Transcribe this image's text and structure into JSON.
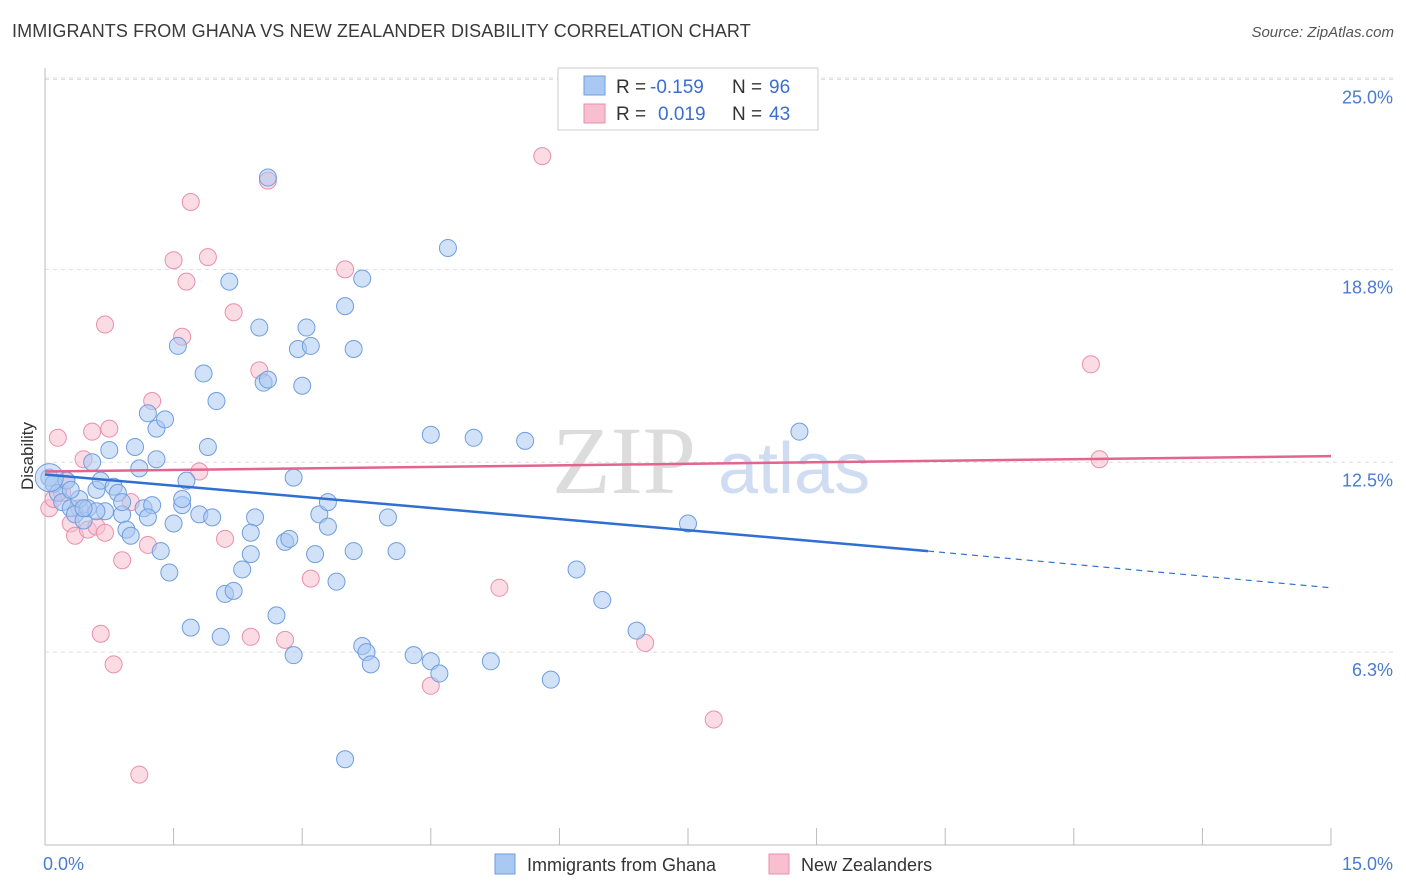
{
  "title": "IMMIGRANTS FROM GHANA VS NEW ZEALANDER DISABILITY CORRELATION CHART",
  "source": "Source: ZipAtlas.com",
  "watermark": {
    "zip": "ZIP",
    "atlas": "atlas"
  },
  "colors": {
    "blue_fill": "#a9c8f2",
    "blue_stroke": "#6f9ee0",
    "blue_line": "#2f6fd1",
    "pink_fill": "#f7bfd0",
    "pink_stroke": "#ea8fab",
    "pink_line": "#e2648f",
    "tick_text": "#4a7bd0",
    "grid": "#dddddd"
  },
  "legend": {
    "rows": [
      {
        "r_label": "R = ",
        "r_value": "-0.159",
        "n_label": "N = ",
        "n_value": "96"
      },
      {
        "r_label": "R = ",
        "r_value": "0.019",
        "n_label": "N = ",
        "n_value": "43"
      }
    ]
  },
  "bottom_legend": {
    "items": [
      {
        "label": "Immigrants from Ghana"
      },
      {
        "label": "New Zealanders"
      }
    ]
  },
  "chart_data": {
    "type": "scatter",
    "title": "IMMIGRANTS FROM GHANA VS NEW ZEALANDER DISABILITY CORRELATION CHART",
    "xlabel": "",
    "ylabel": "Disability",
    "xlim": [
      0,
      15
    ],
    "ylim": [
      0,
      25.9
    ],
    "x_tick_labels": [
      "0.0%",
      "15.0%"
    ],
    "y_ticks": [
      {
        "value": 6.3,
        "label": "6.3%"
      },
      {
        "value": 12.5,
        "label": "12.5%"
      },
      {
        "value": 18.8,
        "label": "18.8%"
      },
      {
        "value": 25.0,
        "label": "25.0%"
      }
    ],
    "grid": true,
    "legend_position": "top-center",
    "series": [
      {
        "name": "Immigrants from Ghana",
        "color": "#a9c8f2",
        "R": -0.159,
        "N": 96,
        "trend": {
          "x0": 0,
          "y0": 12.1,
          "x1": 10.3,
          "y1": 9.6,
          "dashed_to_x": 15,
          "dashed_to_y": 8.4
        },
        "points": [
          [
            0.05,
            12.0
          ],
          [
            0.1,
            11.8
          ],
          [
            0.15,
            11.5
          ],
          [
            0.2,
            11.2
          ],
          [
            0.25,
            11.9
          ],
          [
            0.3,
            11.0
          ],
          [
            0.35,
            10.8
          ],
          [
            0.4,
            11.3
          ],
          [
            0.45,
            10.6
          ],
          [
            0.5,
            11.0
          ],
          [
            0.55,
            12.5
          ],
          [
            0.6,
            11.6
          ],
          [
            0.65,
            11.9
          ],
          [
            0.7,
            10.9
          ],
          [
            0.75,
            12.9
          ],
          [
            0.8,
            11.7
          ],
          [
            0.85,
            11.5
          ],
          [
            0.9,
            10.8
          ],
          [
            0.95,
            10.3
          ],
          [
            1.0,
            10.1
          ],
          [
            1.05,
            13.0
          ],
          [
            1.1,
            12.3
          ],
          [
            1.15,
            11.0
          ],
          [
            1.2,
            14.1
          ],
          [
            1.25,
            11.1
          ],
          [
            1.3,
            13.6
          ],
          [
            1.35,
            9.6
          ],
          [
            1.4,
            13.9
          ],
          [
            1.45,
            8.9
          ],
          [
            1.5,
            10.5
          ],
          [
            1.55,
            16.3
          ],
          [
            1.6,
            11.1
          ],
          [
            1.65,
            11.9
          ],
          [
            1.7,
            7.1
          ],
          [
            1.8,
            10.8
          ],
          [
            1.85,
            15.4
          ],
          [
            1.9,
            13.0
          ],
          [
            1.95,
            10.7
          ],
          [
            2.0,
            14.5
          ],
          [
            2.05,
            6.8
          ],
          [
            2.1,
            8.2
          ],
          [
            2.2,
            8.3
          ],
          [
            2.3,
            9.0
          ],
          [
            2.4,
            9.5
          ],
          [
            2.45,
            10.7
          ],
          [
            2.5,
            16.9
          ],
          [
            2.55,
            15.1
          ],
          [
            2.6,
            15.2
          ],
          [
            2.7,
            7.5
          ],
          [
            2.8,
            9.9
          ],
          [
            2.85,
            10.0
          ],
          [
            2.9,
            12.0
          ],
          [
            2.95,
            16.2
          ],
          [
            3.0,
            15.0
          ],
          [
            3.05,
            16.9
          ],
          [
            3.1,
            16.3
          ],
          [
            3.15,
            9.5
          ],
          [
            3.2,
            10.8
          ],
          [
            3.3,
            10.4
          ],
          [
            3.4,
            8.6
          ],
          [
            3.5,
            17.6
          ],
          [
            3.6,
            9.6
          ],
          [
            3.7,
            6.5
          ],
          [
            3.75,
            6.3
          ],
          [
            3.8,
            5.9
          ],
          [
            4.0,
            10.7
          ],
          [
            4.1,
            9.6
          ],
          [
            4.3,
            6.2
          ],
          [
            4.5,
            13.4
          ],
          [
            5.0,
            13.3
          ],
          [
            5.6,
            13.2
          ],
          [
            6.2,
            9.0
          ],
          [
            6.5,
            8.0
          ],
          [
            6.9,
            7.0
          ],
          [
            7.5,
            10.5
          ],
          [
            8.8,
            13.5
          ],
          [
            2.6,
            21.8
          ],
          [
            3.7,
            18.5
          ],
          [
            4.7,
            19.5
          ],
          [
            2.4,
            10.2
          ],
          [
            1.3,
            12.6
          ],
          [
            0.9,
            11.2
          ],
          [
            1.6,
            11.3
          ],
          [
            3.3,
            11.2
          ],
          [
            2.9,
            6.2
          ],
          [
            1.2,
            10.7
          ],
          [
            3.6,
            16.2
          ],
          [
            2.15,
            18.4
          ],
          [
            0.6,
            10.9
          ],
          [
            0.3,
            11.6
          ],
          [
            5.9,
            5.4
          ],
          [
            3.5,
            2.8
          ],
          [
            4.5,
            6.0
          ],
          [
            4.6,
            5.6
          ],
          [
            5.2,
            6.0
          ],
          [
            0.45,
            11.0
          ]
        ]
      },
      {
        "name": "New Zealanders",
        "color": "#f7bfd0",
        "R": 0.019,
        "N": 43,
        "trend": {
          "x0": 0,
          "y0": 12.2,
          "x1": 15,
          "y1": 12.7
        },
        "points": [
          [
            0.05,
            11.0
          ],
          [
            0.1,
            11.3
          ],
          [
            0.15,
            13.3
          ],
          [
            0.2,
            11.5
          ],
          [
            0.25,
            11.9
          ],
          [
            0.3,
            10.5
          ],
          [
            0.35,
            10.1
          ],
          [
            0.4,
            11.0
          ],
          [
            0.45,
            12.6
          ],
          [
            0.5,
            10.3
          ],
          [
            0.55,
            13.5
          ],
          [
            0.6,
            10.4
          ],
          [
            0.65,
            6.9
          ],
          [
            0.7,
            17.0
          ],
          [
            0.75,
            13.6
          ],
          [
            0.8,
            5.9
          ],
          [
            0.9,
            9.3
          ],
          [
            1.0,
            11.2
          ],
          [
            1.1,
            2.3
          ],
          [
            1.2,
            9.8
          ],
          [
            1.25,
            14.5
          ],
          [
            1.5,
            19.1
          ],
          [
            1.6,
            16.6
          ],
          [
            1.65,
            18.4
          ],
          [
            1.7,
            21.0
          ],
          [
            1.8,
            12.2
          ],
          [
            1.9,
            19.2
          ],
          [
            2.1,
            10.0
          ],
          [
            2.2,
            17.4
          ],
          [
            2.4,
            6.8
          ],
          [
            2.5,
            15.5
          ],
          [
            2.6,
            21.7
          ],
          [
            2.8,
            6.7
          ],
          [
            3.1,
            8.7
          ],
          [
            3.5,
            18.8
          ],
          [
            4.5,
            5.2
          ],
          [
            5.3,
            8.4
          ],
          [
            5.8,
            22.5
          ],
          [
            7.0,
            6.6
          ],
          [
            7.8,
            4.1
          ],
          [
            12.2,
            15.7
          ],
          [
            12.3,
            12.6
          ],
          [
            0.7,
            10.2
          ]
        ]
      }
    ]
  }
}
